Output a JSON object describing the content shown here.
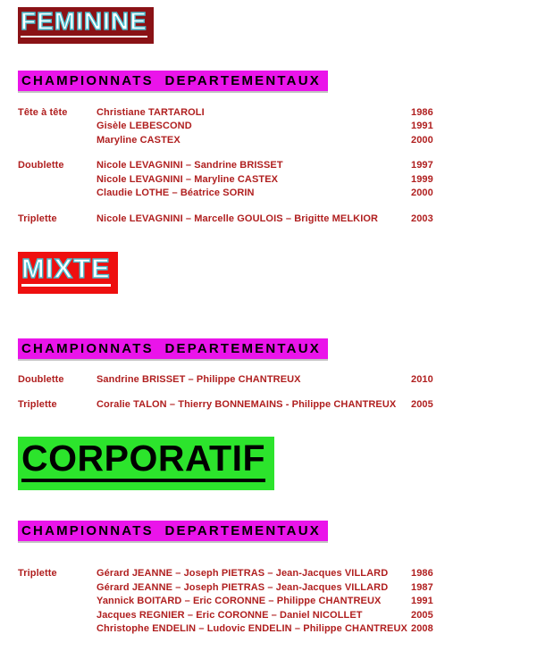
{
  "colors": {
    "feminine_title_bg": "#8a1216",
    "mixte_title_bg": "#ee0f0f",
    "corporatif_title_bg": "#2ce42c",
    "title_letter_fill": "#ffffff",
    "title_letter_outline": "#49bccd",
    "corporatif_letter_fill": "#000000",
    "championnats_strip_bg": "#ea14ea",
    "championnats_text": "#000000",
    "row_text": "#b01f1f",
    "page_bg": "#ffffff"
  },
  "sections": [
    {
      "title": "FEMININE",
      "header": "CHAMPIONNATS  DEPARTEMENTAUX",
      "groups": [
        {
          "label": "Tête à tête",
          "rows": [
            {
              "names": "Christiane TARTAROLI",
              "year": "1986"
            },
            {
              "names": "Gisèle LEBESCOND",
              "year": "1991"
            },
            {
              "names": "Maryline CASTEX",
              "year": "2000"
            }
          ]
        },
        {
          "label": "Doublette",
          "rows": [
            {
              "names": "Nicole LEVAGNINI – Sandrine BRISSET",
              "year": "1997"
            },
            {
              "names": "Nicole LEVAGNINI – Maryline CASTEX",
              "year": "1999"
            },
            {
              "names": "Claudie LOTHE – Béatrice SORIN",
              "year": "2000"
            }
          ]
        },
        {
          "label": "Triplette",
          "rows": [
            {
              "names": "Nicole LEVAGNINI – Marcelle GOULOIS – Brigitte MELKIOR",
              "year": "2003"
            }
          ]
        }
      ]
    },
    {
      "title": "MIXTE",
      "header": "CHAMPIONNATS  DEPARTEMENTAUX",
      "groups": [
        {
          "label": "Doublette",
          "rows": [
            {
              "names": "Sandrine BRISSET – Philippe CHANTREUX",
              "year": "2010"
            }
          ]
        },
        {
          "label": "Triplette",
          "rows": [
            {
              "names": "Coralie TALON – Thierry BONNEMAINS - Philippe CHANTREUX",
              "year": "2005"
            }
          ]
        }
      ]
    },
    {
      "title": "CORPORATIF",
      "header": "CHAMPIONNATS  DEPARTEMENTAUX",
      "groups": [
        {
          "label": "Triplette",
          "rows": [
            {
              "names": "Gérard JEANNE – Joseph PIETRAS – Jean-Jacques VILLARD",
              "year": "1986"
            },
            {
              "names": "Gérard JEANNE – Joseph PIETRAS – Jean-Jacques VILLARD",
              "year": "1987"
            },
            {
              "names": "Yannick BOITARD – Eric CORONNE – Philippe CHANTREUX",
              "year": "1991"
            },
            {
              "names": "Jacques REGNIER – Eric CORONNE – Daniel NICOLLET",
              "year": "2005"
            },
            {
              "names": "Christophe ENDELIN – Ludovic ENDELIN – Philippe CHANTREUX",
              "year": "2008"
            }
          ]
        }
      ]
    }
  ]
}
